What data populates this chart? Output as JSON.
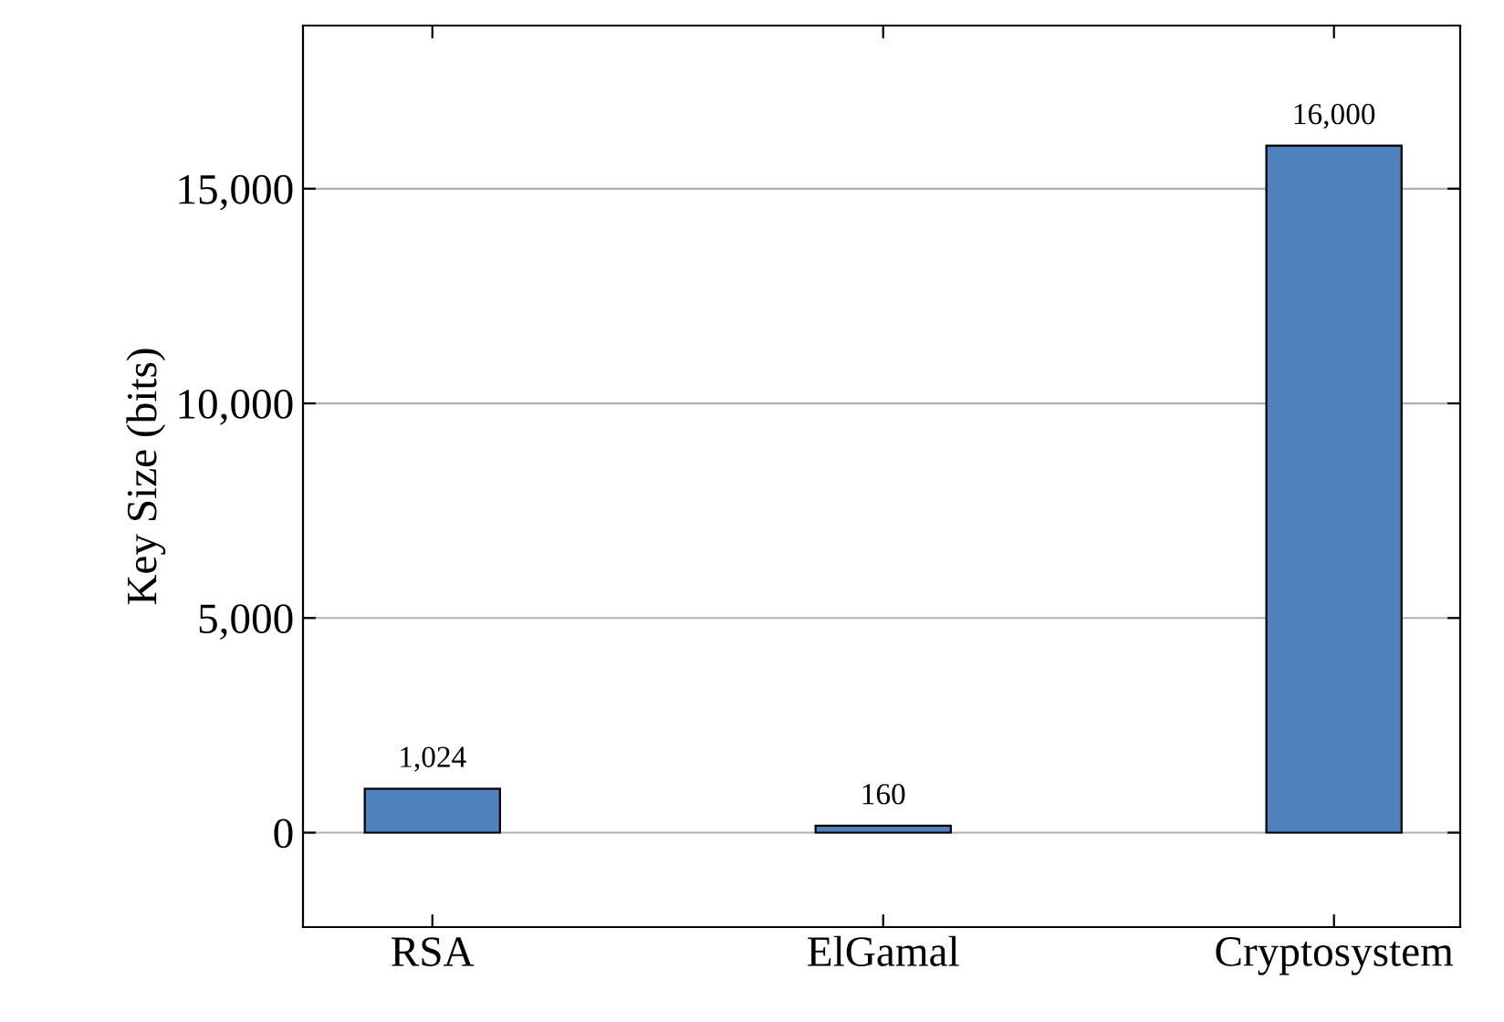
{
  "chart_data": {
    "type": "bar",
    "ylabel": "Key Size (bits)",
    "categories": [
      "RSA",
      "ElGamal",
      "Cryptosystem"
    ],
    "values": [
      1024,
      160,
      16000
    ],
    "value_labels": [
      "1,024",
      "160",
      "16,000"
    ],
    "color": "#4f81bd",
    "ylim": [
      -2200,
      18800
    ],
    "yticks": [
      {
        "value": 0,
        "label": "0"
      },
      {
        "value": 5000,
        "label": "5,000"
      },
      {
        "value": 10000,
        "label": "10,000"
      },
      {
        "value": 15000,
        "label": "15,000"
      }
    ],
    "grid": "y"
  }
}
